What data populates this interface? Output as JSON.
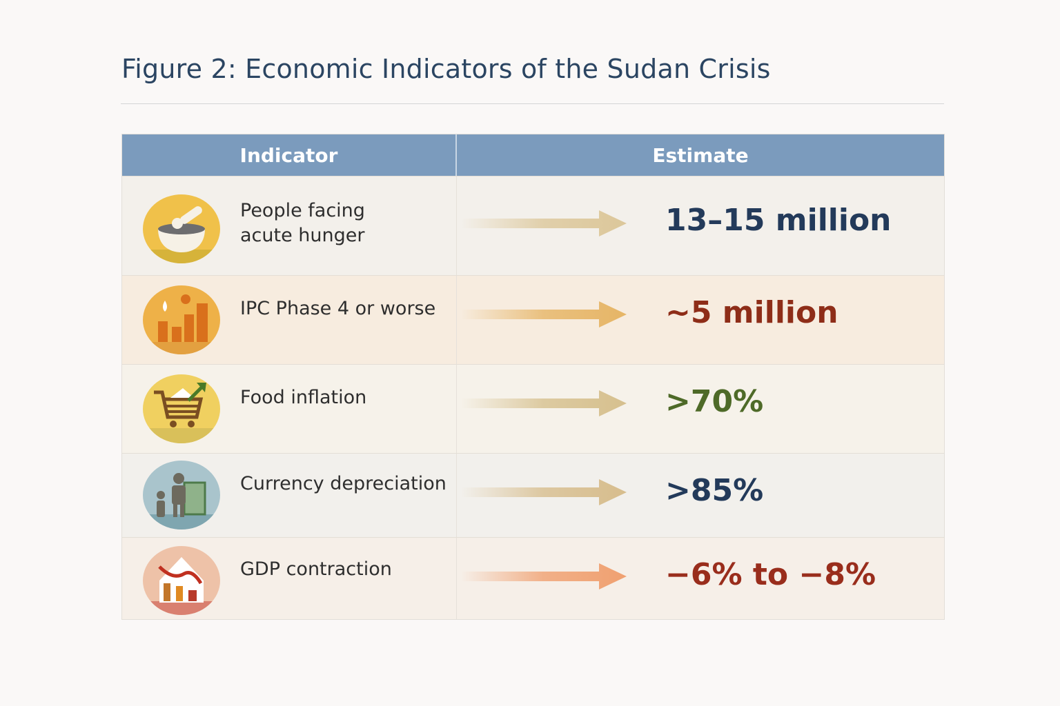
{
  "title": "Figure 2: Economic Indicators of the Sudan Crisis",
  "table": {
    "headers": [
      "Indicator",
      "Estimate"
    ],
    "rows": [
      {
        "indicator": "People facing",
        "indicator_line2": "acute hunger",
        "estimate": "13–15 million",
        "icon": "food-bowl-icon",
        "value_color": "#233a5a",
        "arrow_color": "#dcc79a",
        "icon_color": "#f0c14a",
        "row_bg": "#f3f0eb"
      },
      {
        "indicator": "IPC Phase 4 or worse",
        "indicator_line2": "",
        "estimate": "~5 million",
        "icon": "bar-chart-person-icon",
        "value_color": "#8e2d18",
        "arrow_color": "#e6b566",
        "icon_color": "#eeb148",
        "row_bg": "#f7ecdf"
      },
      {
        "indicator": "Food inflation",
        "indicator_line2": "",
        "estimate": ">70%",
        "icon": "shopping-cart-icon",
        "value_color": "#4e6a28",
        "arrow_color": "#d6c08e",
        "icon_color": "#f0d060",
        "row_bg": "#f6f2ea"
      },
      {
        "indicator": "Currency depreciation",
        "indicator_line2": "",
        "estimate": ">85%",
        "icon": "family-banknote-icon",
        "value_color": "#233a5a",
        "arrow_color": "#d7bd8d",
        "icon_color": "#a9c4cc",
        "row_bg": "#f2f0ec"
      },
      {
        "indicator": "GDP contraction",
        "indicator_line2": "",
        "estimate": "−6% to −8%",
        "icon": "house-falling-chart-icon",
        "value_color": "#992d1c",
        "arrow_color": "#f0a070",
        "icon_color": "#eec2a8",
        "row_bg": "#f6efe8"
      }
    ]
  }
}
